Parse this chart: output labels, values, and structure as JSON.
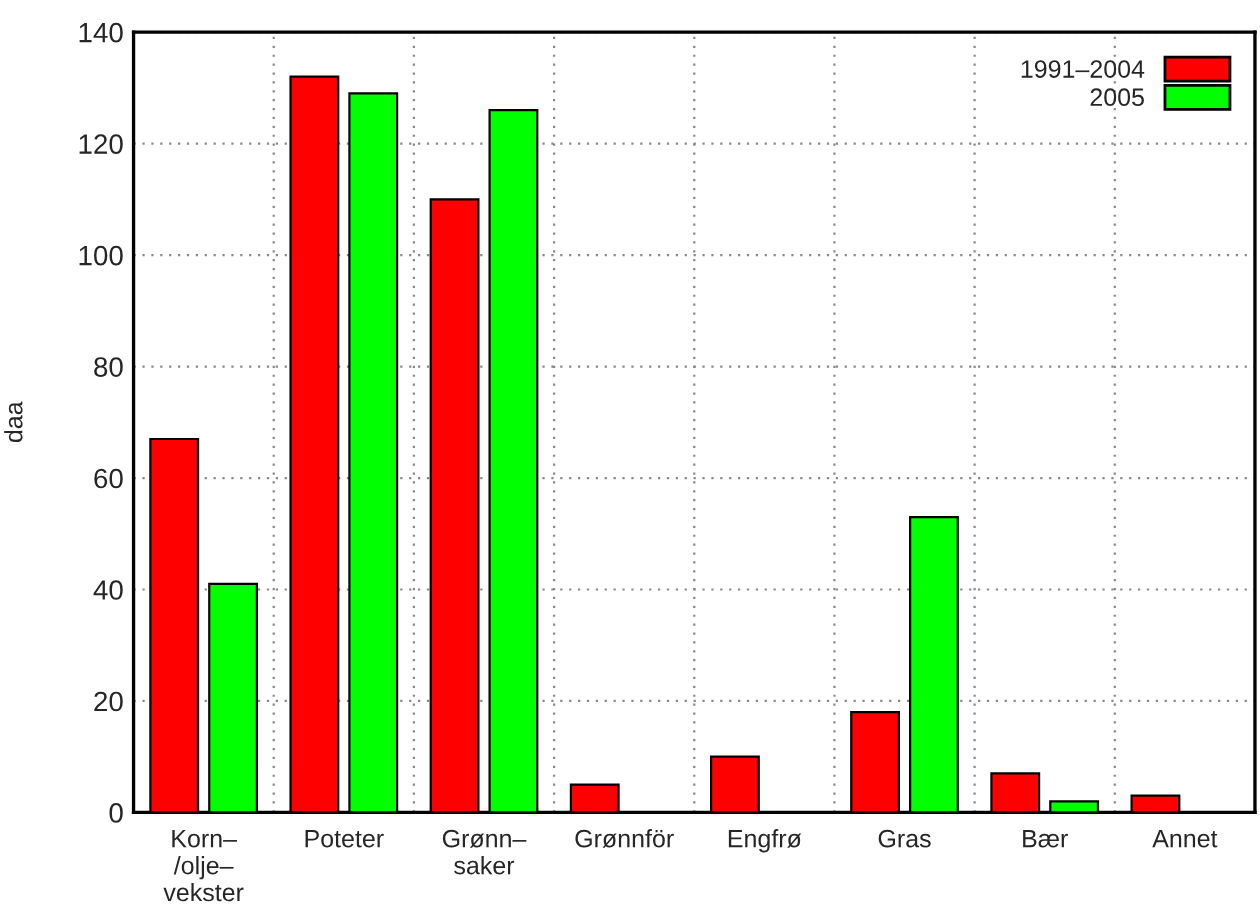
{
  "chart_data": {
    "type": "bar",
    "ylabel": "daa",
    "categories": [
      "Korn–\n/olje–\nvekster",
      "Poteter",
      "Grønn–\nsaker",
      "Grønnför",
      "Engfrø",
      "Gras",
      "Bær",
      "Annet"
    ],
    "series": [
      {
        "name": "1991–2004",
        "color": "#ff0000",
        "values": [
          67,
          132,
          110,
          5,
          10,
          18,
          7,
          3
        ]
      },
      {
        "name": "2005",
        "color": "#00ff00",
        "values": [
          41,
          129,
          126,
          null,
          null,
          53,
          2,
          null
        ]
      }
    ],
    "ylim": [
      0,
      140
    ],
    "yticks": [
      0,
      20,
      40,
      60,
      80,
      100,
      120,
      140
    ],
    "grid": true,
    "legend": "top right"
  }
}
